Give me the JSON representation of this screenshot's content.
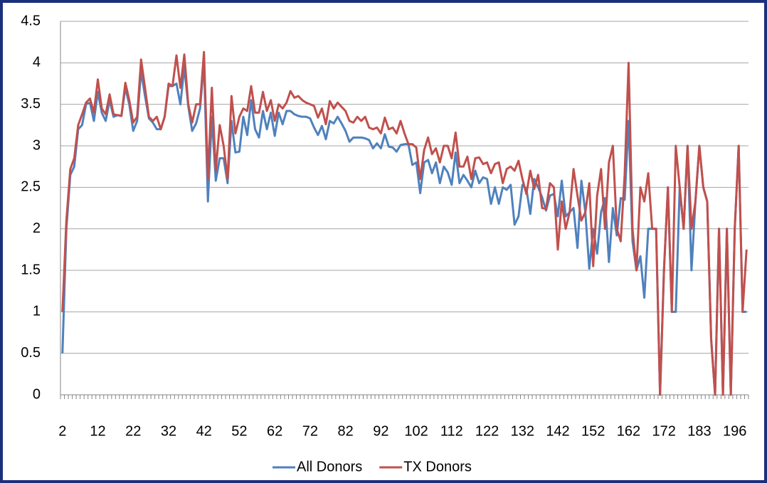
{
  "chart_data": {
    "type": "line",
    "categories": [
      2,
      null,
      null,
      null,
      null,
      null,
      null,
      null,
      null,
      12,
      null,
      null,
      null,
      null,
      null,
      null,
      null,
      null,
      22,
      null,
      null,
      null,
      null,
      null,
      null,
      null,
      null,
      32,
      null,
      null,
      null,
      null,
      null,
      null,
      null,
      null,
      42,
      null,
      null,
      null,
      null,
      null,
      null,
      null,
      null,
      52,
      null,
      null,
      null,
      null,
      null,
      null,
      null,
      null,
      62,
      null,
      null,
      null,
      null,
      null,
      null,
      null,
      null,
      72,
      null,
      null,
      null,
      null,
      null,
      null,
      null,
      null,
      82,
      null,
      null,
      null,
      null,
      null,
      null,
      null,
      null,
      92,
      null,
      null,
      null,
      null,
      null,
      null,
      null,
      null,
      102,
      null,
      null,
      null,
      null,
      null,
      null,
      null,
      null,
      112,
      null,
      null,
      null,
      null,
      null,
      null,
      null,
      null,
      122,
      null,
      null,
      null,
      null,
      null,
      null,
      null,
      null,
      132,
      null,
      null,
      null,
      null,
      null,
      null,
      null,
      null,
      142,
      null,
      null,
      null,
      null,
      null,
      null,
      null,
      null,
      152,
      null,
      null,
      null,
      null,
      null,
      null,
      null,
      null,
      162,
      null,
      null,
      null,
      null,
      null,
      null,
      null,
      null,
      172,
      null,
      null,
      null,
      null,
      null,
      null,
      null,
      null,
      183,
      null,
      null,
      null,
      null,
      null,
      null,
      null,
      null,
      196,
      null,
      null,
      null
    ],
    "series": [
      {
        "name": "All Donors",
        "color": "#4f81bd",
        "values": [
          0.5,
          2.0,
          2.65,
          2.75,
          3.2,
          3.25,
          3.5,
          3.52,
          3.3,
          3.65,
          3.4,
          3.3,
          3.55,
          3.35,
          3.37,
          3.36,
          3.7,
          3.5,
          3.18,
          3.3,
          3.9,
          3.6,
          3.33,
          3.28,
          3.2,
          3.2,
          3.35,
          3.72,
          3.72,
          3.75,
          3.5,
          3.95,
          3.48,
          3.18,
          3.27,
          3.45,
          4.0,
          2.33,
          3.35,
          2.58,
          2.85,
          2.85,
          2.55,
          3.3,
          2.92,
          2.93,
          3.35,
          3.13,
          3.55,
          3.2,
          3.1,
          3.42,
          3.2,
          3.4,
          3.12,
          3.4,
          3.26,
          3.42,
          3.42,
          3.38,
          3.36,
          3.35,
          3.35,
          3.33,
          3.22,
          3.13,
          3.24,
          3.08,
          3.3,
          3.27,
          3.35,
          3.27,
          3.18,
          3.05,
          3.1,
          3.1,
          3.1,
          3.09,
          3.07,
          2.97,
          3.03,
          2.97,
          3.14,
          2.99,
          2.98,
          2.93,
          3.01,
          3.02,
          3.02,
          2.77,
          2.8,
          2.43,
          2.8,
          2.83,
          2.67,
          2.8,
          2.55,
          2.75,
          2.68,
          2.53,
          2.92,
          2.55,
          2.65,
          2.58,
          2.5,
          2.7,
          2.55,
          2.62,
          2.6,
          2.3,
          2.5,
          2.3,
          2.5,
          2.47,
          2.53,
          2.05,
          2.15,
          2.53,
          2.48,
          2.18,
          2.6,
          2.5,
          2.38,
          2.22,
          2.4,
          2.42,
          2.15,
          2.58,
          2.15,
          2.2,
          2.25,
          1.77,
          2.58,
          2.2,
          1.52,
          2.0,
          1.7,
          2.2,
          2.37,
          1.6,
          2.25,
          1.92,
          2.37,
          2.35,
          3.3,
          1.85,
          1.5,
          1.67,
          1.17,
          2.0,
          2.0,
          2.0,
          0,
          1.5,
          2.5,
          1.0,
          1.0,
          2.5,
          2.0,
          3.0,
          1.5,
          2.33,
          3.0,
          2.5,
          2.33,
          0.67,
          0,
          2.0,
          0,
          2.0,
          0,
          2.0,
          3.0,
          1.0,
          1.0
        ]
      },
      {
        "name": "TX Donors",
        "color": "#c0504d",
        "values": [
          1.0,
          2.1,
          2.72,
          2.85,
          3.25,
          3.38,
          3.52,
          3.57,
          3.4,
          3.8,
          3.45,
          3.38,
          3.62,
          3.38,
          3.37,
          3.36,
          3.76,
          3.55,
          3.28,
          3.35,
          4.04,
          3.7,
          3.35,
          3.3,
          3.35,
          3.2,
          3.35,
          3.75,
          3.72,
          4.09,
          3.7,
          4.1,
          3.5,
          3.28,
          3.5,
          3.5,
          4.13,
          2.6,
          3.7,
          2.7,
          3.25,
          3.0,
          2.6,
          3.6,
          3.15,
          3.35,
          3.45,
          3.42,
          3.72,
          3.4,
          3.4,
          3.65,
          3.42,
          3.55,
          3.3,
          3.5,
          3.45,
          3.52,
          3.66,
          3.58,
          3.6,
          3.55,
          3.52,
          3.5,
          3.48,
          3.34,
          3.45,
          3.26,
          3.54,
          3.45,
          3.52,
          3.47,
          3.42,
          3.3,
          3.28,
          3.35,
          3.3,
          3.35,
          3.22,
          3.2,
          3.22,
          3.15,
          3.34,
          3.2,
          3.22,
          3.15,
          3.3,
          3.15,
          3.02,
          3.02,
          2.98,
          2.6,
          2.95,
          3.1,
          2.9,
          2.97,
          2.8,
          3.0,
          3.0,
          2.85,
          3.16,
          2.75,
          2.75,
          2.87,
          2.6,
          2.85,
          2.86,
          2.78,
          2.8,
          2.67,
          2.78,
          2.8,
          2.55,
          2.72,
          2.75,
          2.7,
          2.82,
          2.6,
          2.42,
          2.7,
          2.48,
          2.65,
          2.25,
          2.24,
          2.55,
          2.5,
          1.75,
          2.33,
          2.0,
          2.2,
          2.72,
          2.4,
          2.1,
          2.2,
          2.55,
          1.55,
          2.4,
          2.72,
          2.0,
          2.8,
          3.0,
          2.0,
          1.85,
          2.65,
          4.0,
          2.0,
          1.5,
          2.5,
          2.33,
          2.67,
          2.0,
          2.0,
          0,
          1.5,
          2.5,
          1.0,
          3.0,
          2.5,
          2.0,
          3.0,
          2.0,
          2.33,
          3.0,
          2.5,
          2.33,
          0.67,
          0,
          2.0,
          0,
          2.0,
          0,
          2.0,
          3.0,
          1.0,
          1.75
        ]
      }
    ],
    "ylim": [
      0,
      4.5
    ],
    "yticks": [
      0,
      0.5,
      1,
      1.5,
      2,
      2.5,
      3,
      3.5,
      4,
      4.5
    ],
    "grid": true,
    "legend": "bottom"
  }
}
